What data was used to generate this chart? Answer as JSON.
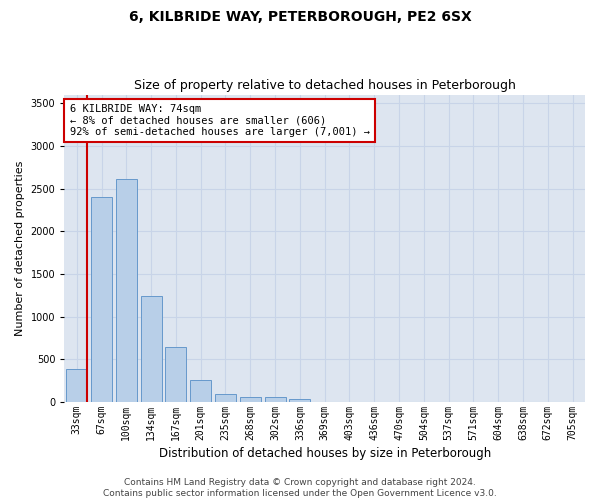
{
  "title": "6, KILBRIDE WAY, PETERBOROUGH, PE2 6SX",
  "subtitle": "Size of property relative to detached houses in Peterborough",
  "xlabel": "Distribution of detached houses by size in Peterborough",
  "ylabel": "Number of detached properties",
  "categories": [
    "33sqm",
    "67sqm",
    "100sqm",
    "134sqm",
    "167sqm",
    "201sqm",
    "235sqm",
    "268sqm",
    "302sqm",
    "336sqm",
    "369sqm",
    "403sqm",
    "436sqm",
    "470sqm",
    "504sqm",
    "537sqm",
    "571sqm",
    "604sqm",
    "638sqm",
    "672sqm",
    "705sqm"
  ],
  "values": [
    390,
    2400,
    2610,
    1240,
    640,
    255,
    95,
    60,
    55,
    35,
    0,
    0,
    0,
    0,
    0,
    0,
    0,
    0,
    0,
    0,
    0
  ],
  "bar_color": "#b8cfe8",
  "bar_edge_color": "#6699cc",
  "highlight_color": "#cc0000",
  "annotation_text": "6 KILBRIDE WAY: 74sqm\n← 8% of detached houses are smaller (606)\n92% of semi-detached houses are larger (7,001) →",
  "annotation_box_color": "#ffffff",
  "annotation_box_edge_color": "#cc0000",
  "ylim": [
    0,
    3600
  ],
  "yticks": [
    0,
    500,
    1000,
    1500,
    2000,
    2500,
    3000,
    3500
  ],
  "grid_color": "#c8d4e8",
  "bg_color": "#dde5f0",
  "footer": "Contains HM Land Registry data © Crown copyright and database right 2024.\nContains public sector information licensed under the Open Government Licence v3.0.",
  "title_fontsize": 10,
  "subtitle_fontsize": 9,
  "xlabel_fontsize": 8.5,
  "ylabel_fontsize": 8,
  "tick_fontsize": 7,
  "footer_fontsize": 6.5,
  "annotation_fontsize": 7.5
}
